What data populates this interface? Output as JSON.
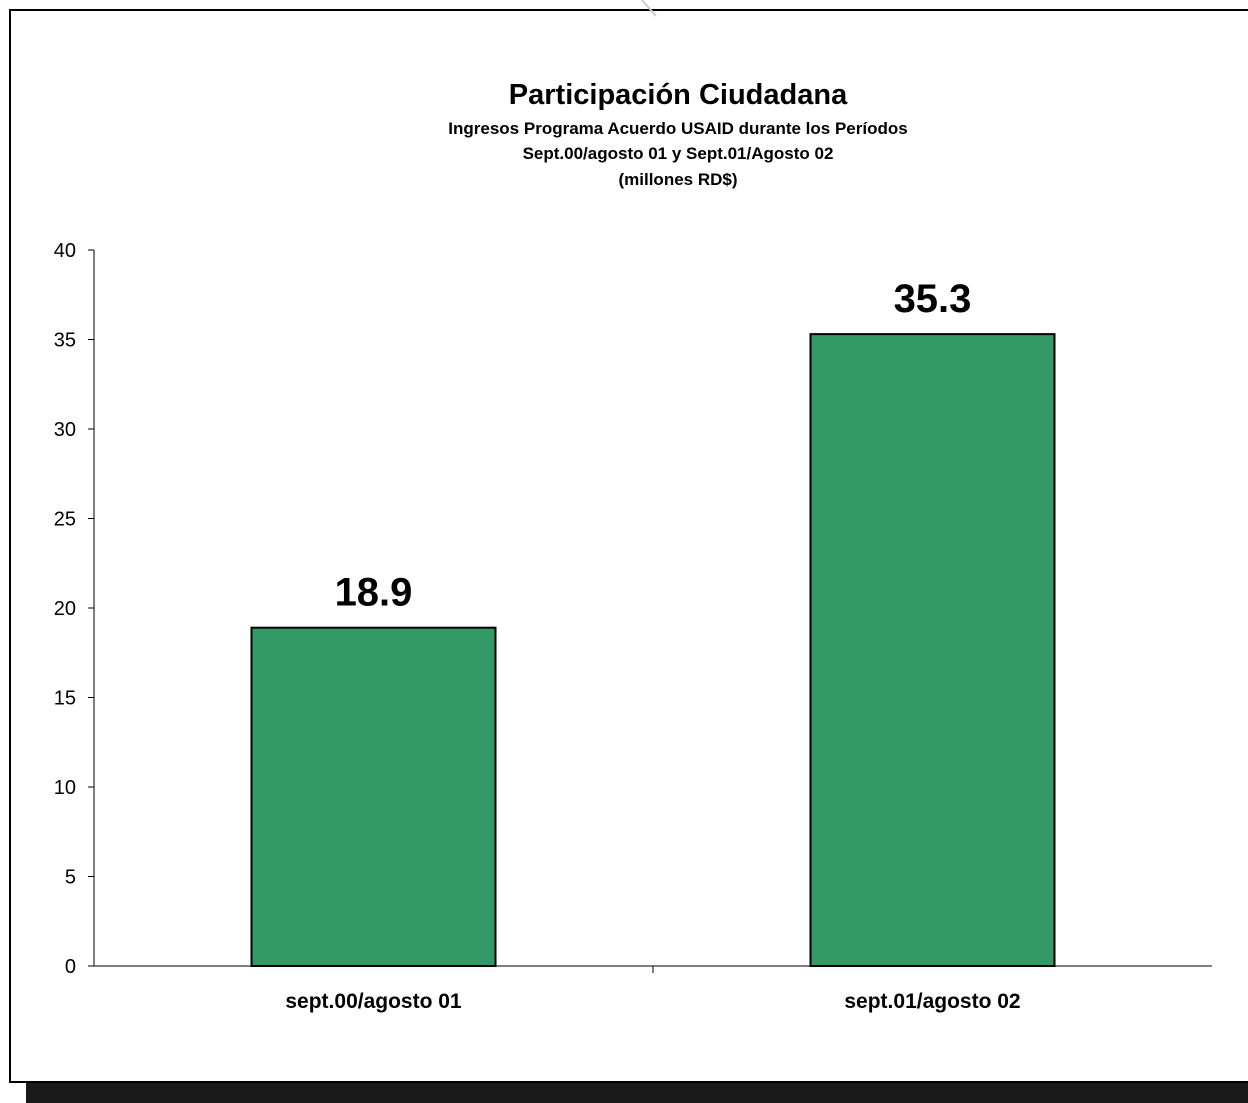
{
  "chart_data": {
    "type": "bar",
    "title": "Participación Ciudadana",
    "subtitle_lines": [
      "Ingresos Programa Acuerdo USAID durante los Períodos",
      "Sept.00/agosto 01 y Sept.01/Agosto 02",
      "(millones RD$)"
    ],
    "categories": [
      "sept.00/agosto 01",
      "sept.01/agosto 02"
    ],
    "values": [
      18.9,
      35.3
    ],
    "value_labels": [
      "18.9",
      "35.3"
    ],
    "ylim": [
      0,
      40
    ],
    "yticks": [
      "0",
      "5",
      "10",
      "15",
      "20",
      "25",
      "30",
      "35",
      "40"
    ],
    "xlabel": "",
    "ylabel": "",
    "grid": false,
    "legend": "none",
    "bar_color": "#339966"
  }
}
